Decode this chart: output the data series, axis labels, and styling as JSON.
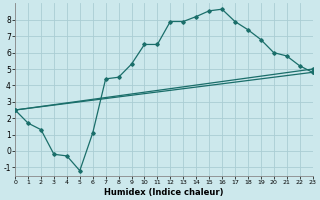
{
  "xlabel": "Humidex (Indice chaleur)",
  "bg_color": "#cce8ec",
  "grid_color": "#aacdd4",
  "line_color": "#1a6e6a",
  "xlim": [
    0,
    23
  ],
  "ylim": [
    -1.5,
    9.0
  ],
  "xticks": [
    0,
    1,
    2,
    3,
    4,
    5,
    6,
    7,
    8,
    9,
    10,
    11,
    12,
    13,
    14,
    15,
    16,
    17,
    18,
    19,
    20,
    21,
    22,
    23
  ],
  "yticks": [
    -1,
    0,
    1,
    2,
    3,
    4,
    5,
    6,
    7,
    8
  ],
  "line1": {
    "x": [
      0,
      1,
      2,
      3,
      4,
      5,
      6,
      7,
      8,
      9,
      10,
      11,
      12,
      13,
      14,
      15,
      16,
      17,
      18,
      19,
      20,
      21,
      22,
      23
    ],
    "y": [
      2.5,
      1.7,
      1.3,
      -0.2,
      -0.3,
      -1.2,
      1.1,
      4.4,
      4.5,
      5.3,
      6.5,
      6.5,
      7.9,
      7.9,
      8.2,
      8.55,
      8.65,
      7.9,
      7.4,
      6.8,
      6.0,
      5.8,
      5.2,
      4.8
    ]
  },
  "line2": {
    "x": [
      0,
      23
    ],
    "y": [
      2.5,
      5.0
    ]
  },
  "line3": {
    "x": [
      0,
      23
    ],
    "y": [
      2.5,
      4.8
    ]
  }
}
